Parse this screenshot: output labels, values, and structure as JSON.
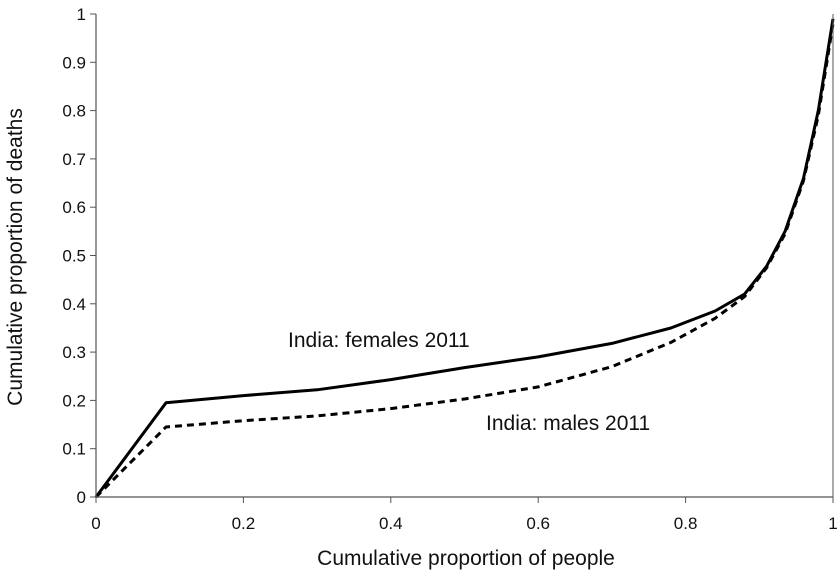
{
  "chart_data": {
    "type": "line",
    "title": "",
    "xlabel": "Cumulative proportion of people",
    "ylabel": "Cumulative proportion of deaths",
    "xlim": [
      0,
      1
    ],
    "ylim": [
      0,
      1
    ],
    "x_ticks": [
      "0",
      "0.2",
      "0.4",
      "0.6",
      "0.8",
      "1"
    ],
    "y_ticks": [
      "0",
      "0.1",
      "0.2",
      "0.3",
      "0.4",
      "0.5",
      "0.6",
      "0.7",
      "0.8",
      "0.9",
      "1"
    ],
    "grid": false,
    "legend": "none",
    "series": [
      {
        "name": "India: females 2011",
        "style": "solid",
        "color": "#000000",
        "points": [
          [
            0,
            0
          ],
          [
            0.095,
            0.195
          ],
          [
            0.2,
            0.21
          ],
          [
            0.3,
            0.222
          ],
          [
            0.4,
            0.243
          ],
          [
            0.5,
            0.268
          ],
          [
            0.6,
            0.29
          ],
          [
            0.7,
            0.318
          ],
          [
            0.78,
            0.35
          ],
          [
            0.84,
            0.385
          ],
          [
            0.88,
            0.42
          ],
          [
            0.91,
            0.478
          ],
          [
            0.935,
            0.55
          ],
          [
            0.96,
            0.66
          ],
          [
            0.98,
            0.8
          ],
          [
            1.0,
            0.99
          ]
        ]
      },
      {
        "name": "India: males 2011",
        "style": "dashed",
        "color": "#000000",
        "points": [
          [
            0,
            0
          ],
          [
            0.095,
            0.145
          ],
          [
            0.2,
            0.158
          ],
          [
            0.3,
            0.168
          ],
          [
            0.4,
            0.183
          ],
          [
            0.5,
            0.203
          ],
          [
            0.6,
            0.228
          ],
          [
            0.7,
            0.27
          ],
          [
            0.78,
            0.32
          ],
          [
            0.84,
            0.37
          ],
          [
            0.88,
            0.415
          ],
          [
            0.91,
            0.475
          ],
          [
            0.935,
            0.545
          ],
          [
            0.96,
            0.655
          ],
          [
            0.98,
            0.79
          ],
          [
            1.0,
            0.98
          ]
        ]
      }
    ]
  }
}
